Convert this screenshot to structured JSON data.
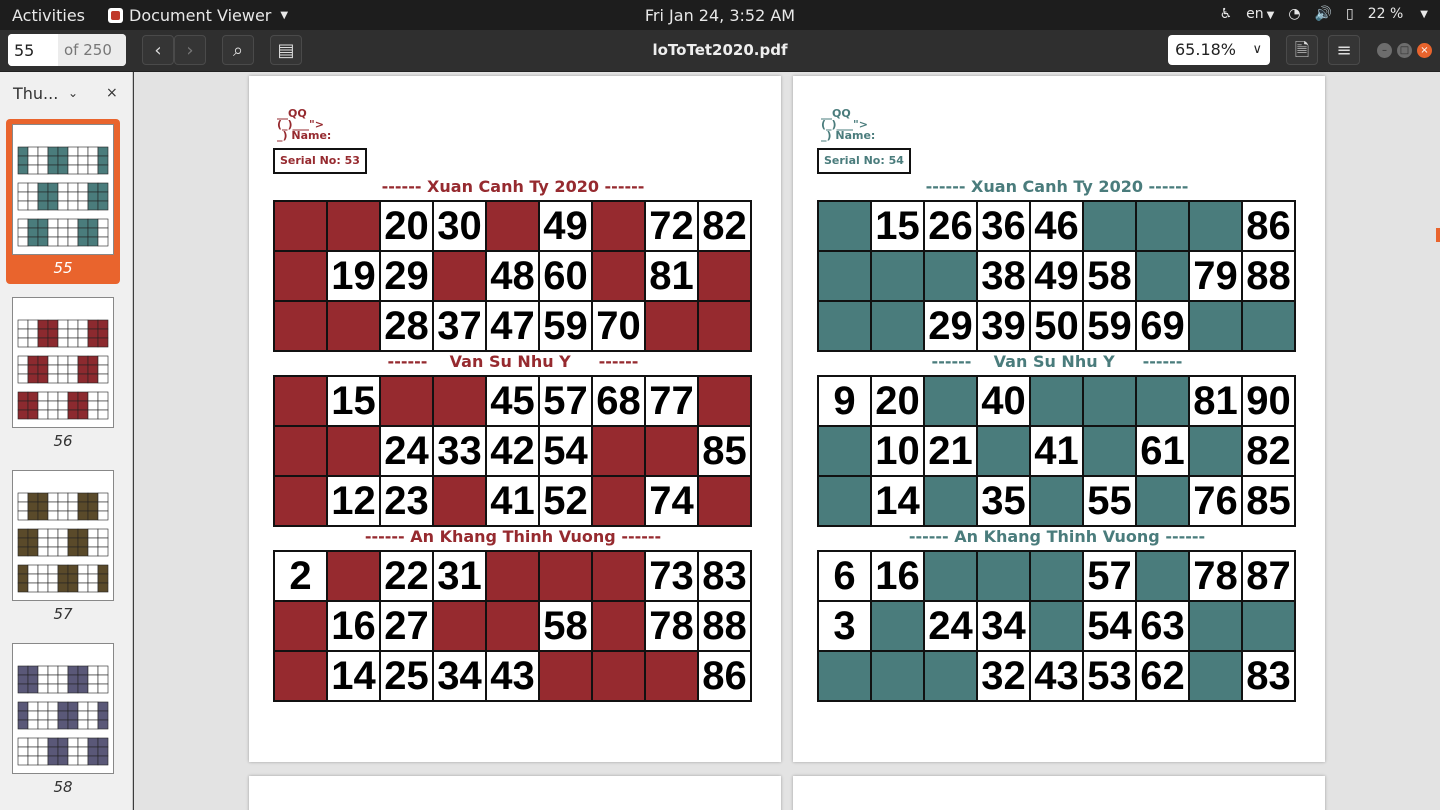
{
  "topbar": {
    "activities": "Activities",
    "app_name": "Document Viewer",
    "clock": "Fri Jan 24,  3:52 AM",
    "lang": "en",
    "battery": "22 %"
  },
  "header": {
    "page_number": "55",
    "page_total": "of 250",
    "doc_title": "loToTet2020.pdf",
    "zoom": "65.18%"
  },
  "sidebar": {
    "label": "Thu...",
    "thumbnails": [
      {
        "page": "55",
        "color": "#4a7c7c"
      },
      {
        "page": "56",
        "color": "#8c2a2f"
      },
      {
        "page": "57",
        "color": "#5a4a2a"
      },
      {
        "page": "58",
        "color": "#5a5878"
      }
    ]
  },
  "document": {
    "logo_top": "__QQ",
    "logo_mid": "(_)___\">",
    "logo_name": "_) Name:",
    "pages": [
      {
        "serial": "Serial No: 53",
        "color": "#962a2f",
        "cards": [
          {
            "title": "------ Xuan Canh Ty 2020 ------",
            "rows": [
              [
                "",
                "",
                "20",
                "30",
                "",
                "49",
                "",
                "72",
                "82"
              ],
              [
                "",
                "19",
                "29",
                "",
                "48",
                "60",
                "",
                "81",
                ""
              ],
              [
                "",
                "",
                "28",
                "37",
                "47",
                "59",
                "70",
                "",
                ""
              ]
            ]
          },
          {
            "title": "------    Van Su Nhu Y     ------",
            "rows": [
              [
                "",
                "15",
                "",
                "",
                "45",
                "57",
                "68",
                "77",
                ""
              ],
              [
                "",
                "",
                "24",
                "33",
                "42",
                "54",
                "",
                "",
                "85"
              ],
              [
                "",
                "12",
                "23",
                "",
                "41",
                "52",
                "",
                "74",
                ""
              ]
            ]
          },
          {
            "title": "------ An Khang Thinh Vuong ------",
            "rows": [
              [
                "2",
                "",
                "22",
                "31",
                "",
                "",
                "",
                "73",
                "83"
              ],
              [
                "",
                "16",
                "27",
                "",
                "",
                "58",
                "",
                "78",
                "88"
              ],
              [
                "",
                "14",
                "25",
                "34",
                "43",
                "",
                "",
                "",
                "86"
              ]
            ]
          }
        ]
      },
      {
        "serial": "Serial No: 54",
        "color": "#4a7c7c",
        "cards": [
          {
            "title": "------ Xuan Canh Ty 2020 ------",
            "rows": [
              [
                "",
                "15",
                "26",
                "36",
                "46",
                "",
                "",
                "",
                "86"
              ],
              [
                "",
                "",
                "",
                "38",
                "49",
                "58",
                "",
                "79",
                "88"
              ],
              [
                "",
                "",
                "29",
                "39",
                "50",
                "59",
                "69",
                "",
                ""
              ]
            ]
          },
          {
            "title": "------    Van Su Nhu Y     ------",
            "rows": [
              [
                "9",
                "20",
                "",
                "40",
                "",
                "",
                "",
                "81",
                "90"
              ],
              [
                "",
                "10",
                "21",
                "",
                "41",
                "",
                "61",
                "",
                "82"
              ],
              [
                "",
                "14",
                "",
                "35",
                "",
                "55",
                "",
                "76",
                "85"
              ]
            ]
          },
          {
            "title": "------ An Khang Thinh Vuong ------",
            "rows": [
              [
                "6",
                "16",
                "",
                "",
                "",
                "57",
                "",
                "78",
                "87"
              ],
              [
                "3",
                "",
                "24",
                "34",
                "",
                "54",
                "63",
                "",
                ""
              ],
              [
                "",
                "",
                "",
                "32",
                "43",
                "53",
                "62",
                "",
                "83"
              ]
            ]
          }
        ]
      }
    ]
  }
}
